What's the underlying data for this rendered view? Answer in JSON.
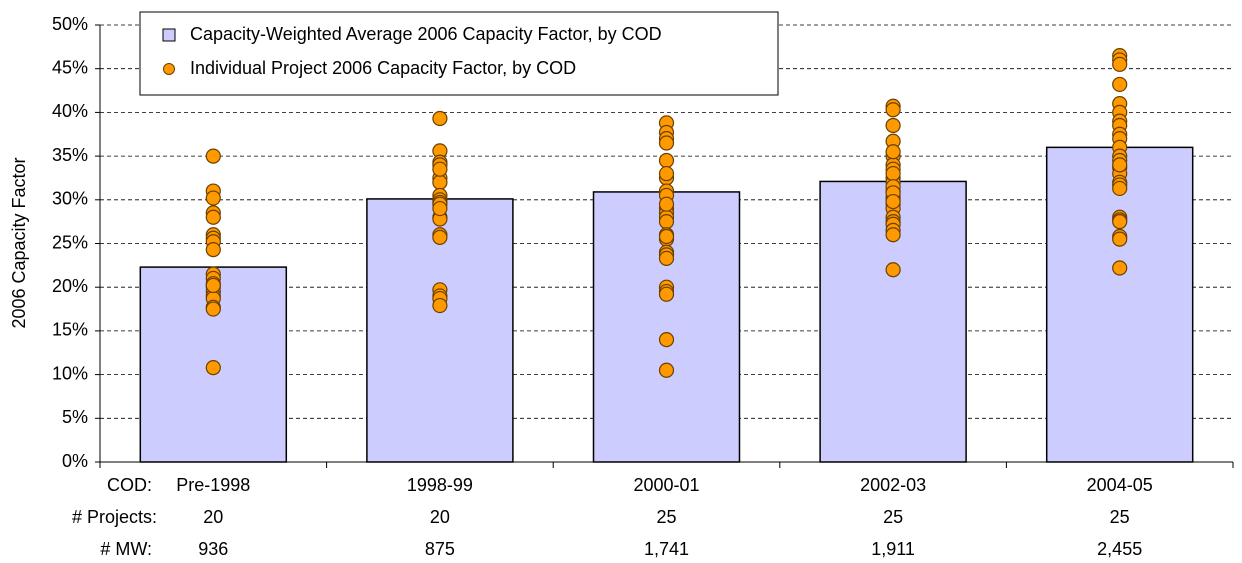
{
  "chart_data": {
    "type": "bar",
    "y_label": "2006 Capacity Factor",
    "categories": [
      "Pre-1998",
      "1998-99",
      "2000-01",
      "2002-03",
      "2004-05"
    ],
    "series": [
      {
        "name": "Capacity-Weighted Average 2006 Capacity Factor, by COD",
        "type": "bar",
        "color": "#ccccff",
        "values": [
          22.3,
          30.1,
          30.9,
          32.1,
          36.0
        ]
      },
      {
        "name": "Individual Project 2006 Capacity Factor, by COD",
        "type": "scatter",
        "color": "#ff9900",
        "values": [
          [
            35,
            31,
            30.2,
            28.5,
            28,
            26,
            25.6,
            25.2,
            24.3,
            21.5,
            21,
            20.4,
            20,
            19.5,
            19,
            18.7,
            17.7,
            17.5,
            10.8,
            20.2
          ],
          [
            39.3,
            35.6,
            34.3,
            34,
            32.5,
            32,
            30.5,
            30,
            29.7,
            29.5,
            28,
            27.8,
            26,
            25.7,
            19.7,
            19,
            18.7,
            17.9,
            33.5,
            29
          ],
          [
            38.8,
            37.7,
            37,
            36.5,
            34.5,
            32.5,
            31,
            30.5,
            29,
            28.5,
            28,
            27.5,
            26,
            25.5,
            24,
            23.7,
            23.3,
            20,
            19.5,
            19.2,
            14,
            10.5,
            25.8,
            29.5,
            33
          ],
          [
            40.7,
            40.3,
            38.5,
            36.7,
            35,
            34,
            33.5,
            32.5,
            32,
            31,
            30.3,
            30,
            29.5,
            29,
            28,
            27.5,
            27.2,
            26.5,
            26,
            22,
            33,
            35.5,
            31.5,
            30.8,
            29.8
          ],
          [
            46.5,
            46,
            45.5,
            43.2,
            41,
            40,
            39,
            38.5,
            37.5,
            37,
            36,
            35,
            34.5,
            33.7,
            33,
            32,
            31.7,
            31.3,
            28,
            27.7,
            27.5,
            25.8,
            25.5,
            22.2,
            34
          ]
        ]
      }
    ],
    "ylim": [
      0,
      50
    ],
    "yticks": [
      {
        "value": 0,
        "label": "0%"
      },
      {
        "value": 5,
        "label": "5%"
      },
      {
        "value": 10,
        "label": "10%"
      },
      {
        "value": 15,
        "label": "15%"
      },
      {
        "value": 20,
        "label": "20%"
      },
      {
        "value": 25,
        "label": "25%"
      },
      {
        "value": 30,
        "label": "30%"
      },
      {
        "value": 35,
        "label": "35%"
      },
      {
        "value": 40,
        "label": "40%"
      },
      {
        "value": 45,
        "label": "45%"
      },
      {
        "value": 50,
        "label": "50%"
      }
    ],
    "grid": true,
    "table": {
      "category_label": "COD:",
      "projects_label": "# Projects:",
      "projects": [
        20,
        20,
        25,
        25,
        25
      ],
      "mw_label": "# MW:",
      "mw": [
        "936",
        "875",
        "1,741",
        "1,911",
        "2,455"
      ]
    }
  }
}
